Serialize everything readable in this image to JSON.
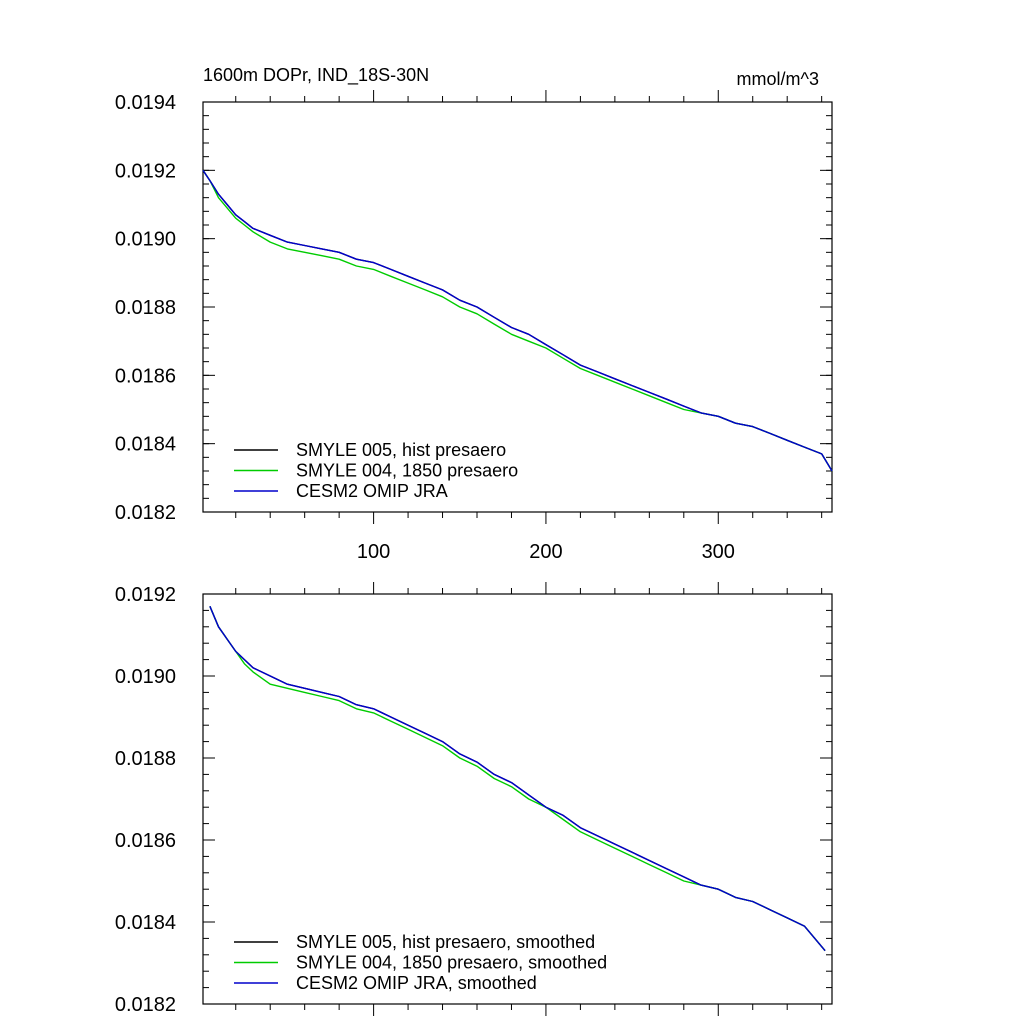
{
  "figure": {
    "title_left": "1600m DOPr, IND_18S-30N",
    "title_right": "mmol/m^3"
  },
  "chart_data": [
    {
      "type": "line",
      "x_ticks": [
        100,
        200,
        300
      ],
      "x_tick_labels": [
        "100",
        "200",
        "300"
      ],
      "xlim": [
        1,
        366
      ],
      "ylim": [
        0.0182,
        0.0194
      ],
      "y_ticks": [
        0.0182,
        0.0184,
        0.0186,
        0.0188,
        0.019,
        0.0192,
        0.0194
      ],
      "y_tick_labels": [
        "0.0182",
        "0.0184",
        "0.0186",
        "0.0188",
        "0.0190",
        "0.0192",
        "0.0194"
      ],
      "grid": false,
      "legend_position": "bottom-left",
      "series": [
        {
          "name": "SMYLE 005, hist presaero",
          "color": "#000000",
          "x": [
            1,
            5,
            10,
            15,
            20,
            25,
            30,
            40,
            50,
            60,
            70,
            80,
            90,
            100,
            110,
            120,
            130,
            140,
            150,
            160,
            170,
            180,
            190,
            200,
            210,
            220,
            230,
            240,
            250,
            260,
            270,
            280,
            290,
            300,
            310,
            320,
            330,
            340,
            350,
            360,
            366
          ],
          "y": [
            0.0192,
            0.01917,
            0.01913,
            0.0191,
            0.01907,
            0.01905,
            0.01903,
            0.01901,
            0.01899,
            0.01898,
            0.01897,
            0.01896,
            0.01894,
            0.01893,
            0.01891,
            0.01889,
            0.01887,
            0.01885,
            0.01882,
            0.0188,
            0.01877,
            0.01874,
            0.01872,
            0.01869,
            0.01866,
            0.01863,
            0.01861,
            0.01859,
            0.01857,
            0.01855,
            0.01853,
            0.01851,
            0.01849,
            0.01848,
            0.01846,
            0.01845,
            0.01843,
            0.01841,
            0.01839,
            0.01837,
            0.01832
          ]
        },
        {
          "name": "SMYLE 004, 1850 presaero",
          "color": "#00cc00",
          "x": [
            1,
            5,
            10,
            15,
            20,
            25,
            30,
            40,
            50,
            60,
            70,
            80,
            90,
            100,
            110,
            120,
            130,
            140,
            150,
            160,
            170,
            180,
            190,
            200,
            210,
            220,
            230,
            240,
            250,
            260,
            270,
            280,
            290,
            300,
            310,
            320,
            330,
            340,
            350,
            360,
            366
          ],
          "y": [
            0.0192,
            0.01917,
            0.01912,
            0.01909,
            0.01906,
            0.01904,
            0.01902,
            0.01899,
            0.01897,
            0.01896,
            0.01895,
            0.01894,
            0.01892,
            0.01891,
            0.01889,
            0.01887,
            0.01885,
            0.01883,
            0.0188,
            0.01878,
            0.01875,
            0.01872,
            0.0187,
            0.01868,
            0.01865,
            0.01862,
            0.0186,
            0.01858,
            0.01856,
            0.01854,
            0.01852,
            0.0185,
            0.01849,
            0.01848,
            0.01846,
            0.01845,
            0.01843,
            0.01841,
            0.01839,
            0.01837,
            0.01832
          ]
        },
        {
          "name": "CESM2 OMIP JRA",
          "color": "#0000cc",
          "x": [
            1,
            5,
            10,
            15,
            20,
            25,
            30,
            40,
            50,
            60,
            70,
            80,
            90,
            100,
            110,
            120,
            130,
            140,
            150,
            160,
            170,
            180,
            190,
            200,
            210,
            220,
            230,
            240,
            250,
            260,
            270,
            280,
            290,
            300,
            310,
            320,
            330,
            340,
            350,
            360,
            366
          ],
          "y": [
            0.0192,
            0.01917,
            0.01913,
            0.0191,
            0.01907,
            0.01905,
            0.01903,
            0.01901,
            0.01899,
            0.01898,
            0.01897,
            0.01896,
            0.01894,
            0.01893,
            0.01891,
            0.01889,
            0.01887,
            0.01885,
            0.01882,
            0.0188,
            0.01877,
            0.01874,
            0.01872,
            0.01869,
            0.01866,
            0.01863,
            0.01861,
            0.01859,
            0.01857,
            0.01855,
            0.01853,
            0.01851,
            0.01849,
            0.01848,
            0.01846,
            0.01845,
            0.01843,
            0.01841,
            0.01839,
            0.01837,
            0.01832
          ]
        }
      ]
    },
    {
      "type": "line",
      "x_ticks": [
        100,
        200,
        300
      ],
      "xlim": [
        1,
        366
      ],
      "ylim": [
        0.0182,
        0.0192
      ],
      "y_ticks": [
        0.0182,
        0.0184,
        0.0186,
        0.0188,
        0.019,
        0.0192
      ],
      "y_tick_labels": [
        "0.0182",
        "0.0184",
        "0.0186",
        "0.0188",
        "0.0190",
        "0.0192"
      ],
      "grid": false,
      "legend_position": "bottom-left",
      "series": [
        {
          "name": "SMYLE 005, hist presaero, smoothed",
          "color": "#000000",
          "x": [
            5,
            10,
            15,
            20,
            25,
            30,
            40,
            50,
            60,
            70,
            80,
            90,
            100,
            110,
            120,
            130,
            140,
            150,
            160,
            170,
            180,
            190,
            200,
            210,
            220,
            230,
            240,
            250,
            260,
            270,
            280,
            290,
            300,
            310,
            320,
            330,
            340,
            350,
            362
          ],
          "y": [
            0.01917,
            0.01912,
            0.01909,
            0.01906,
            0.01904,
            0.01902,
            0.019,
            0.01898,
            0.01897,
            0.01896,
            0.01895,
            0.01893,
            0.01892,
            0.0189,
            0.01888,
            0.01886,
            0.01884,
            0.01881,
            0.01879,
            0.01876,
            0.01874,
            0.01871,
            0.01868,
            0.01866,
            0.01863,
            0.01861,
            0.01859,
            0.01857,
            0.01855,
            0.01853,
            0.01851,
            0.01849,
            0.01848,
            0.01846,
            0.01845,
            0.01843,
            0.01841,
            0.01839,
            0.01833
          ]
        },
        {
          "name": "SMYLE 004, 1850 presaero, smoothed",
          "color": "#00cc00",
          "x": [
            5,
            10,
            15,
            20,
            25,
            30,
            40,
            50,
            60,
            70,
            80,
            90,
            100,
            110,
            120,
            130,
            140,
            150,
            160,
            170,
            180,
            190,
            200,
            210,
            220,
            230,
            240,
            250,
            260,
            270,
            280,
            290,
            300,
            310,
            320,
            330,
            340,
            350,
            362
          ],
          "y": [
            0.01917,
            0.01912,
            0.01909,
            0.01906,
            0.01903,
            0.01901,
            0.01898,
            0.01897,
            0.01896,
            0.01895,
            0.01894,
            0.01892,
            0.01891,
            0.01889,
            0.01887,
            0.01885,
            0.01883,
            0.0188,
            0.01878,
            0.01875,
            0.01873,
            0.0187,
            0.01868,
            0.01865,
            0.01862,
            0.0186,
            0.01858,
            0.01856,
            0.01854,
            0.01852,
            0.0185,
            0.01849,
            0.01848,
            0.01846,
            0.01845,
            0.01843,
            0.01841,
            0.01839,
            0.01833
          ]
        },
        {
          "name": "CESM2 OMIP JRA, smoothed",
          "color": "#0000cc",
          "x": [
            5,
            10,
            15,
            20,
            25,
            30,
            40,
            50,
            60,
            70,
            80,
            90,
            100,
            110,
            120,
            130,
            140,
            150,
            160,
            170,
            180,
            190,
            200,
            210,
            220,
            230,
            240,
            250,
            260,
            270,
            280,
            290,
            300,
            310,
            320,
            330,
            340,
            350,
            362
          ],
          "y": [
            0.01917,
            0.01912,
            0.01909,
            0.01906,
            0.01904,
            0.01902,
            0.019,
            0.01898,
            0.01897,
            0.01896,
            0.01895,
            0.01893,
            0.01892,
            0.0189,
            0.01888,
            0.01886,
            0.01884,
            0.01881,
            0.01879,
            0.01876,
            0.01874,
            0.01871,
            0.01868,
            0.01866,
            0.01863,
            0.01861,
            0.01859,
            0.01857,
            0.01855,
            0.01853,
            0.01851,
            0.01849,
            0.01848,
            0.01846,
            0.01845,
            0.01843,
            0.01841,
            0.01839,
            0.01833
          ]
        }
      ]
    }
  ]
}
